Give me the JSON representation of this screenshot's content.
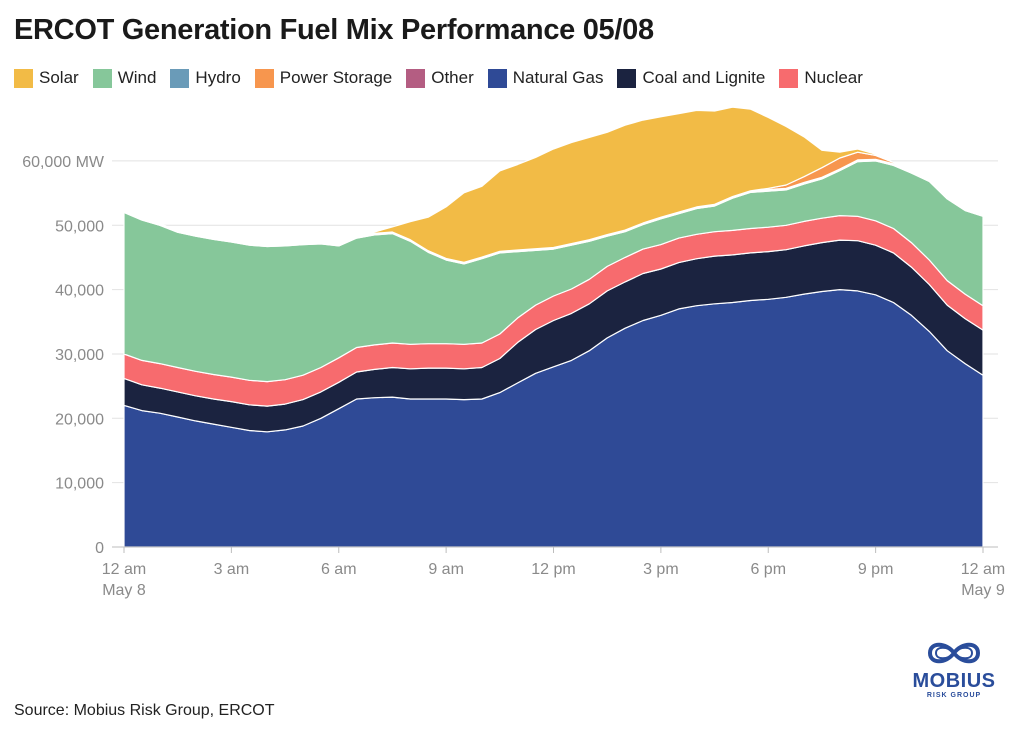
{
  "title": "ERCOT Generation Fuel Mix Performance 05/08",
  "source": "Source: Mobius Risk Group, ERCOT",
  "logo": {
    "name": "MOBIUS",
    "sub": "RISK GROUP"
  },
  "chart_data": {
    "type": "area",
    "stacked": true,
    "title": "ERCOT Generation Fuel Mix Performance 05/08",
    "ylabel": "MW",
    "ylim": [
      0,
      69000
    ],
    "yticks": [
      0,
      10000,
      20000,
      30000,
      40000,
      50000,
      60000
    ],
    "ytick_labels": [
      "0",
      "10,000",
      "20,000",
      "30,000",
      "40,000",
      "50,000",
      "60,000 MW"
    ],
    "x_hours": [
      0,
      0.5,
      1,
      1.5,
      2,
      2.5,
      3,
      3.5,
      4,
      4.5,
      5,
      5.5,
      6,
      6.5,
      7,
      7.5,
      8,
      8.5,
      9,
      9.5,
      10,
      10.5,
      11,
      11.5,
      12,
      12.5,
      13,
      13.5,
      14,
      14.5,
      15,
      15.5,
      16,
      16.5,
      17,
      17.5,
      18,
      18.5,
      19,
      19.5,
      20,
      20.5,
      21,
      21.5,
      22,
      22.5,
      23,
      23.5,
      24
    ],
    "xticks": [
      {
        "hour": 0,
        "label": "12 am",
        "sub": "May 8"
      },
      {
        "hour": 3,
        "label": "3 am",
        "sub": ""
      },
      {
        "hour": 6,
        "label": "6 am",
        "sub": ""
      },
      {
        "hour": 9,
        "label": "9 am",
        "sub": ""
      },
      {
        "hour": 12,
        "label": "12 pm",
        "sub": ""
      },
      {
        "hour": 15,
        "label": "3 pm",
        "sub": ""
      },
      {
        "hour": 18,
        "label": "6 pm",
        "sub": ""
      },
      {
        "hour": 21,
        "label": "9 pm",
        "sub": ""
      },
      {
        "hour": 24,
        "label": "12 am",
        "sub": "May 9"
      }
    ],
    "legend": [
      {
        "name": "Solar",
        "color": "#f2bb46"
      },
      {
        "name": "Wind",
        "color": "#86c79a"
      },
      {
        "name": "Hydro",
        "color": "#6a9bb8"
      },
      {
        "name": "Power Storage",
        "color": "#f7964e"
      },
      {
        "name": "Other",
        "color": "#b45d82"
      },
      {
        "name": "Natural Gas",
        "color": "#2f4a96"
      },
      {
        "name": "Coal and Lignite",
        "color": "#1b2340"
      },
      {
        "name": "Nuclear",
        "color": "#f76b6e"
      }
    ],
    "series": [
      {
        "name": "Natural Gas",
        "color": "#2f4a96",
        "values": [
          22000,
          21200,
          20800,
          20200,
          19600,
          19100,
          18600,
          18100,
          17900,
          18200,
          18800,
          20000,
          21500,
          23000,
          23200,
          23300,
          23000,
          23000,
          23000,
          22900,
          23000,
          24000,
          25500,
          27000,
          28000,
          29000,
          30500,
          32500,
          34000,
          35200,
          36000,
          37000,
          37500,
          37800,
          38000,
          38300,
          38500,
          38800,
          39300,
          39700,
          40000,
          39800,
          39200,
          38000,
          36000,
          33500,
          30500,
          28500,
          26700
        ]
      },
      {
        "name": "Coal and Lignite",
        "color": "#1b2340",
        "values": [
          4200,
          4000,
          3900,
          3900,
          3900,
          3900,
          4000,
          4000,
          4000,
          4000,
          4100,
          4100,
          4100,
          4200,
          4400,
          4600,
          4700,
          4800,
          4800,
          4800,
          4900,
          5300,
          6300,
          6800,
          7200,
          7300,
          7300,
          7300,
          7200,
          7300,
          7200,
          7200,
          7300,
          7400,
          7400,
          7400,
          7400,
          7400,
          7500,
          7600,
          7700,
          7800,
          7700,
          7700,
          7500,
          7300,
          7100,
          7000,
          7000
        ]
      },
      {
        "name": "Nuclear",
        "color": "#f76b6e",
        "values": [
          3800,
          3800,
          3800,
          3800,
          3800,
          3800,
          3800,
          3800,
          3800,
          3800,
          3800,
          3800,
          3800,
          3800,
          3800,
          3800,
          3800,
          3800,
          3800,
          3800,
          3800,
          3800,
          3800,
          3800,
          3800,
          3800,
          3800,
          3800,
          3800,
          3800,
          3800,
          3800,
          3800,
          3800,
          3800,
          3800,
          3800,
          3800,
          3800,
          3800,
          3800,
          3800,
          3800,
          3800,
          3800,
          3800,
          3800,
          3800,
          3800
        ]
      },
      {
        "name": "Wind",
        "color": "#86c79a",
        "values": [
          22000,
          21800,
          21500,
          21000,
          21000,
          21000,
          21000,
          21000,
          21000,
          20800,
          20300,
          19200,
          17400,
          17000,
          17100,
          17000,
          16000,
          14200,
          13000,
          12500,
          13100,
          12600,
          10300,
          8500,
          7300,
          6800,
          5900,
          4700,
          4000,
          3800,
          4000,
          3800,
          4000,
          4000,
          5000,
          5600,
          5600,
          5500,
          5800,
          6100,
          7000,
          8500,
          9300,
          9800,
          10800,
          12200,
          12700,
          13000,
          13900
        ]
      },
      {
        "name": "Hydro",
        "color": "#6a9bb8",
        "values": [
          150,
          150,
          150,
          150,
          150,
          150,
          150,
          150,
          150,
          150,
          150,
          150,
          150,
          150,
          150,
          150,
          150,
          150,
          150,
          150,
          150,
          150,
          150,
          150,
          150,
          150,
          150,
          150,
          150,
          150,
          150,
          150,
          150,
          150,
          150,
          150,
          150,
          150,
          150,
          150,
          150,
          150,
          150,
          150,
          150,
          150,
          150,
          150,
          150
        ]
      },
      {
        "name": "Other",
        "color": "#b45d82",
        "values": [
          100,
          100,
          100,
          100,
          100,
          100,
          100,
          100,
          100,
          100,
          100,
          100,
          100,
          100,
          100,
          100,
          100,
          100,
          100,
          100,
          100,
          100,
          100,
          100,
          100,
          100,
          100,
          100,
          100,
          100,
          100,
          100,
          100,
          100,
          100,
          100,
          100,
          100,
          100,
          100,
          100,
          100,
          100,
          100,
          100,
          100,
          100,
          100,
          100
        ]
      },
      {
        "name": "Power Storage",
        "color": "#f7964e",
        "values": [
          0,
          0,
          0,
          0,
          0,
          0,
          0,
          0,
          0,
          0,
          0,
          0,
          0,
          0,
          0,
          0,
          0,
          0,
          0,
          0,
          0,
          0,
          0,
          0,
          0,
          0,
          0,
          0,
          0,
          0,
          0,
          0,
          0,
          0,
          0,
          0,
          200,
          500,
          900,
          1500,
          1700,
          1200,
          600,
          200,
          0,
          0,
          0,
          0,
          0
        ]
      },
      {
        "name": "Solar",
        "color": "#f2bb46",
        "values": [
          0,
          0,
          0,
          0,
          0,
          0,
          0,
          0,
          0,
          0,
          0,
          0,
          0,
          0,
          200,
          800,
          2800,
          5200,
          8000,
          10800,
          11000,
          12500,
          13300,
          14200,
          15300,
          15700,
          15900,
          15900,
          16300,
          16000,
          15600,
          15300,
          15000,
          14500,
          13900,
          12700,
          11000,
          9100,
          6200,
          2700,
          900,
          500,
          200,
          0,
          0,
          0,
          0,
          0,
          0
        ]
      }
    ]
  }
}
